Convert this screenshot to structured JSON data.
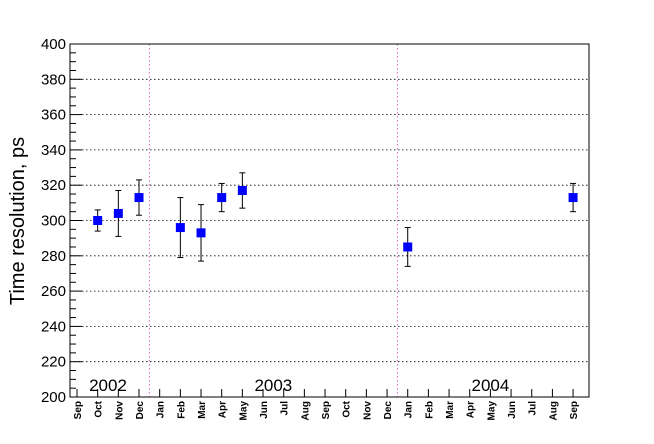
{
  "chart_data": {
    "type": "scatter",
    "ylabel": "Time  resolution, ps",
    "xlabel": "",
    "ylim": [
      200,
      400
    ],
    "yticks": [
      200,
      220,
      240,
      260,
      280,
      300,
      320,
      340,
      360,
      380,
      400
    ],
    "months": [
      "Sep",
      "Oct",
      "Nov",
      "Dec",
      "Jan",
      "Feb",
      "Mar",
      "Apr",
      "May",
      "Jun",
      "Jul",
      "Aug",
      "Sep",
      "Oct",
      "Nov",
      "Dec",
      "Jan",
      "Feb",
      "Mar",
      "Apr",
      "May",
      "Jun",
      "Jul",
      "Aug",
      "Sep"
    ],
    "years": [
      {
        "label": "2002",
        "start": 0,
        "end": 3
      },
      {
        "label": "2003",
        "start": 4,
        "end": 15
      },
      {
        "label": "2004",
        "start": 16,
        "end": 24
      }
    ],
    "year_separators": [
      3.5,
      15.5
    ],
    "grid": true,
    "marker_color": "#0000ff",
    "separator_color": "#cc66cc",
    "points": [
      {
        "month": "Oct 2002",
        "x": 1,
        "y": 300,
        "err_low": 6,
        "err_high": 6
      },
      {
        "month": "Nov 2002",
        "x": 2,
        "y": 304,
        "err_low": 13,
        "err_high": 13
      },
      {
        "month": "Dec 2002",
        "x": 3,
        "y": 313,
        "err_low": 10,
        "err_high": 10
      },
      {
        "month": "Feb 2003",
        "x": 5,
        "y": 296,
        "err_low": 17,
        "err_high": 17
      },
      {
        "month": "Mar 2003",
        "x": 6,
        "y": 293,
        "err_low": 16,
        "err_high": 16
      },
      {
        "month": "Apr 2003",
        "x": 7,
        "y": 313,
        "err_low": 8,
        "err_high": 8
      },
      {
        "month": "May 2003",
        "x": 8,
        "y": 317,
        "err_low": 10,
        "err_high": 10
      },
      {
        "month": "Jan 2004",
        "x": 16,
        "y": 285,
        "err_low": 11,
        "err_high": 11
      },
      {
        "month": "Sep 2004",
        "x": 24,
        "y": 313,
        "err_low": 8,
        "err_high": 8
      }
    ]
  }
}
